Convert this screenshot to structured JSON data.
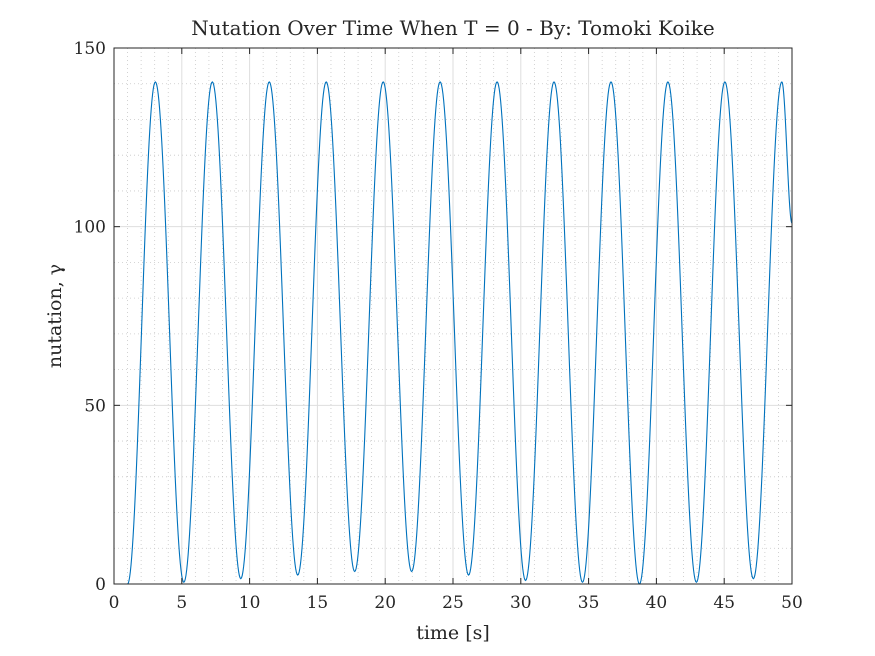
{
  "chart_data": {
    "type": "line",
    "title": "Nutation Over Time When T = 0 - By: Tomoki Koike",
    "xlabel": "time [s]",
    "ylabel": "nutation, γ",
    "xlim": [
      0,
      50
    ],
    "ylim": [
      0,
      150
    ],
    "xticks": [
      "0",
      "5",
      "10",
      "15",
      "20",
      "25",
      "30",
      "35",
      "40",
      "45",
      "50"
    ],
    "yticks": [
      "0",
      "50",
      "100",
      "150"
    ],
    "grid": true,
    "minor_grid": true,
    "line_color": "#0072BD",
    "series": [
      {
        "name": "",
        "x": [
          1.0,
          3.05,
          5.15,
          7.25,
          9.35,
          11.45,
          13.55,
          15.65,
          17.75,
          19.85,
          21.95,
          24.05,
          26.15,
          28.25,
          30.35,
          32.45,
          34.55,
          36.65,
          38.75,
          40.85,
          42.95,
          45.05,
          47.15,
          49.25,
          50.0
        ],
        "y": [
          0,
          140.5,
          0.5,
          140.5,
          1.5,
          140.5,
          2.5,
          140.5,
          3.5,
          140.5,
          3.5,
          140.5,
          2.5,
          140.5,
          1.0,
          140.5,
          0.5,
          140.5,
          0,
          140.5,
          0.5,
          140.5,
          1.5,
          140.5,
          101
        ]
      }
    ]
  }
}
